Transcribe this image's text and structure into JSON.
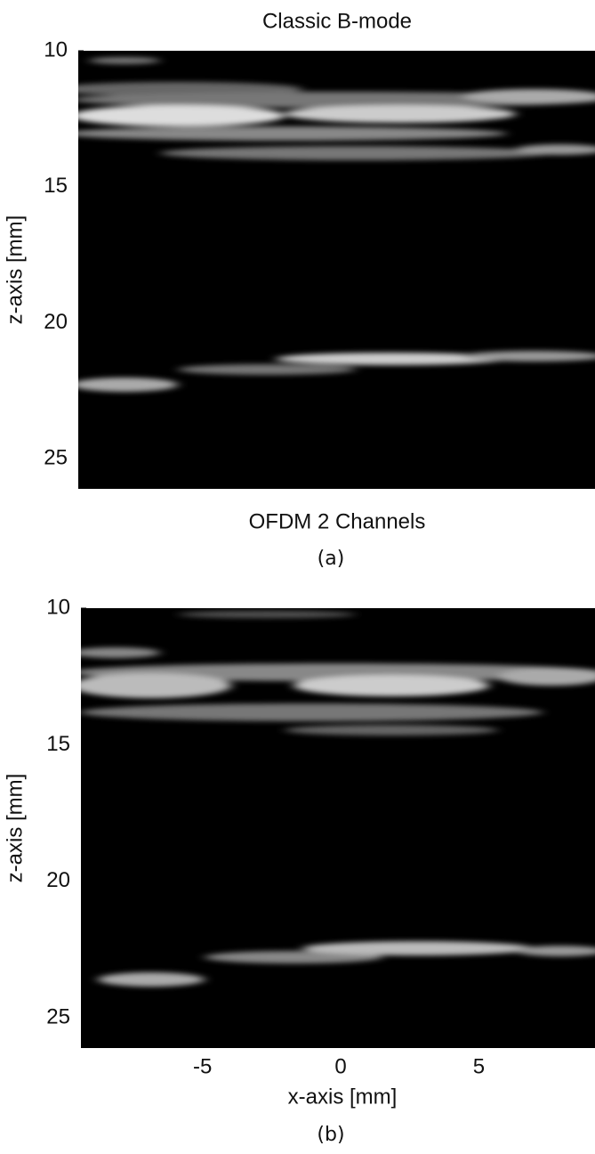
{
  "chart_data": [
    {
      "type": "image",
      "title": "Classic B-mode",
      "ylabel": "z-axis [mm]",
      "ylim": [
        10,
        26.1
      ],
      "yticks": [
        10,
        15,
        20,
        25
      ],
      "caption": "(a)"
    },
    {
      "type": "image",
      "title": "OFDM 2 Channels",
      "ylabel": "z-axis [mm]",
      "xlabel": "x-axis [mm]",
      "xlim": [
        -9.4,
        9.2
      ],
      "xticks": [
        -5,
        0,
        5
      ],
      "ylim": [
        10,
        26.1
      ],
      "yticks": [
        10,
        15,
        20,
        25
      ],
      "caption": "(b)"
    }
  ]
}
